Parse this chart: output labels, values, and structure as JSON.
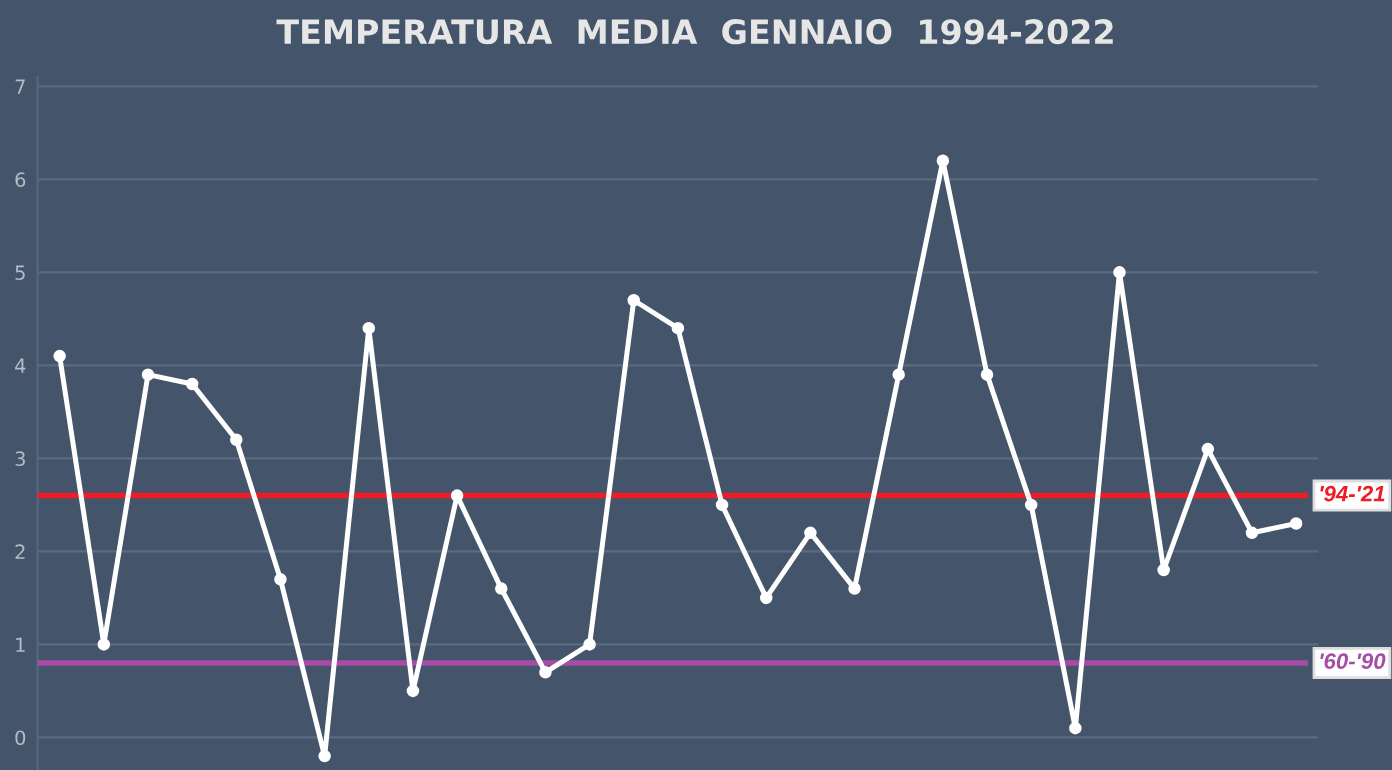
{
  "chart_data": {
    "type": "line",
    "title": "TEMPERATURA  MEDIA  GENNAIO  1994-2022",
    "categories": [
      null,
      null,
      null,
      null,
      null,
      null,
      null,
      null,
      null,
      null,
      null,
      null,
      null,
      null,
      null,
      null,
      null,
      null,
      null,
      null,
      null,
      null,
      null,
      null,
      null,
      null,
      null,
      null,
      null
    ],
    "series": [
      {
        "color": "#ffffff",
        "values": [
          4.1,
          1.0,
          3.9,
          3.8,
          3.2,
          1.7,
          -0.2,
          4.4,
          0.5,
          2.6,
          1.6,
          0.7,
          1.0,
          4.7,
          4.4,
          2.5,
          1.5,
          2.2,
          1.6,
          3.9,
          6.2,
          3.9,
          2.5,
          0.1,
          5.0,
          1.8,
          3.1,
          2.2,
          2.3
        ]
      }
    ],
    "ylim": [
      -0.35,
      7.1
    ],
    "yticks": [
      0,
      1,
      2,
      3,
      4,
      5,
      6,
      7
    ],
    "grid": "y",
    "marker": "circle",
    "line_style": "solid",
    "ref_lines": [
      {
        "axis": "y",
        "value": 2.6,
        "color": "#ee1c25"
      },
      {
        "axis": "y",
        "value": 0.8,
        "color": "#a64ca6"
      }
    ],
    "annotations": [
      {
        "text": "'94-'21",
        "y": 2.6
      },
      {
        "text": "'60-'90",
        "y": 0.8
      }
    ]
  }
}
